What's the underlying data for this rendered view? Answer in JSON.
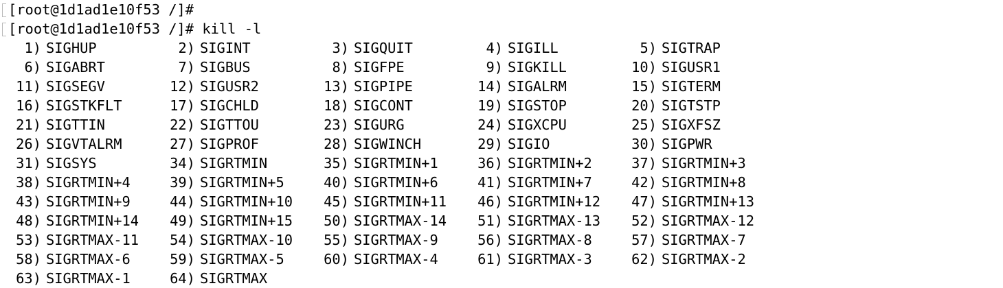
{
  "terminal": {
    "prompt_line_1": "[root@1d1ad1e10f53 /]#",
    "prompt_line_2": "[root@1d1ad1e10f53 /]# kill -l",
    "signal_rows": [
      [
        [
          "1)",
          "SIGHUP"
        ],
        [
          "2)",
          "SIGINT"
        ],
        [
          "3)",
          "SIGQUIT"
        ],
        [
          "4)",
          "SIGILL"
        ],
        [
          "5)",
          "SIGTRAP"
        ]
      ],
      [
        [
          "6)",
          "SIGABRT"
        ],
        [
          "7)",
          "SIGBUS"
        ],
        [
          "8)",
          "SIGFPE"
        ],
        [
          "9)",
          "SIGKILL"
        ],
        [
          "10)",
          "SIGUSR1"
        ]
      ],
      [
        [
          "11)",
          "SIGSEGV"
        ],
        [
          "12)",
          "SIGUSR2"
        ],
        [
          "13)",
          "SIGPIPE"
        ],
        [
          "14)",
          "SIGALRM"
        ],
        [
          "15)",
          "SIGTERM"
        ]
      ],
      [
        [
          "16)",
          "SIGSTKFLT"
        ],
        [
          "17)",
          "SIGCHLD"
        ],
        [
          "18)",
          "SIGCONT"
        ],
        [
          "19)",
          "SIGSTOP"
        ],
        [
          "20)",
          "SIGTSTP"
        ]
      ],
      [
        [
          "21)",
          "SIGTTIN"
        ],
        [
          "22)",
          "SIGTTOU"
        ],
        [
          "23)",
          "SIGURG"
        ],
        [
          "24)",
          "SIGXCPU"
        ],
        [
          "25)",
          "SIGXFSZ"
        ]
      ],
      [
        [
          "26)",
          "SIGVTALRM"
        ],
        [
          "27)",
          "SIGPROF"
        ],
        [
          "28)",
          "SIGWINCH"
        ],
        [
          "29)",
          "SIGIO"
        ],
        [
          "30)",
          "SIGPWR"
        ]
      ],
      [
        [
          "31)",
          "SIGSYS"
        ],
        [
          "34)",
          "SIGRTMIN"
        ],
        [
          "35)",
          "SIGRTMIN+1"
        ],
        [
          "36)",
          "SIGRTMIN+2"
        ],
        [
          "37)",
          "SIGRTMIN+3"
        ]
      ],
      [
        [
          "38)",
          "SIGRTMIN+4"
        ],
        [
          "39)",
          "SIGRTMIN+5"
        ],
        [
          "40)",
          "SIGRTMIN+6"
        ],
        [
          "41)",
          "SIGRTMIN+7"
        ],
        [
          "42)",
          "SIGRTMIN+8"
        ]
      ],
      [
        [
          "43)",
          "SIGRTMIN+9"
        ],
        [
          "44)",
          "SIGRTMIN+10"
        ],
        [
          "45)",
          "SIGRTMIN+11"
        ],
        [
          "46)",
          "SIGRTMIN+12"
        ],
        [
          "47)",
          "SIGRTMIN+13"
        ]
      ],
      [
        [
          "48)",
          "SIGRTMIN+14"
        ],
        [
          "49)",
          "SIGRTMIN+15"
        ],
        [
          "50)",
          "SIGRTMAX-14"
        ],
        [
          "51)",
          "SIGRTMAX-13"
        ],
        [
          "52)",
          "SIGRTMAX-12"
        ]
      ],
      [
        [
          "53)",
          "SIGRTMAX-11"
        ],
        [
          "54)",
          "SIGRTMAX-10"
        ],
        [
          "55)",
          "SIGRTMAX-9"
        ],
        [
          "56)",
          "SIGRTMAX-8"
        ],
        [
          "57)",
          "SIGRTMAX-7"
        ]
      ],
      [
        [
          "58)",
          "SIGRTMAX-6"
        ],
        [
          "59)",
          "SIGRTMAX-5"
        ],
        [
          "60)",
          "SIGRTMAX-4"
        ],
        [
          "61)",
          "SIGRTMAX-3"
        ],
        [
          "62)",
          "SIGRTMAX-2"
        ]
      ],
      [
        [
          "63)",
          "SIGRTMAX-1"
        ],
        [
          "64)",
          "SIGRTMAX"
        ]
      ]
    ]
  }
}
